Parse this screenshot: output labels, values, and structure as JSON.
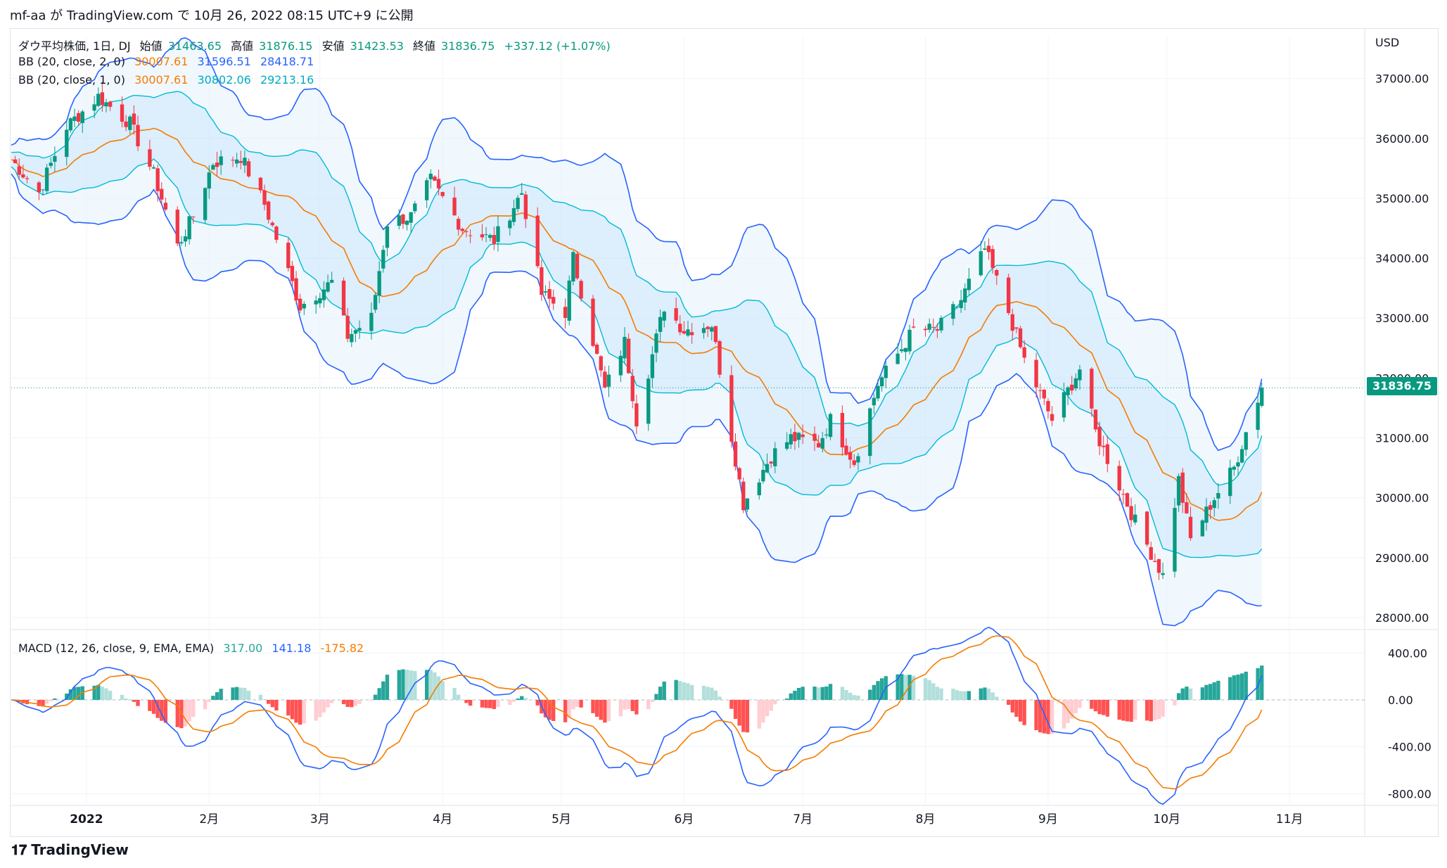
{
  "header": {
    "text": "mf-aa が TradingView.com で 10月 26, 2022 08:15 UTC+9 に公開"
  },
  "legend": {
    "main": {
      "name": "ダウ平均株価, 1日, DJ",
      "open_label": "始値",
      "open": "31463.65",
      "high_label": "高値",
      "high": "31876.15",
      "low_label": "安値",
      "low": "31423.53",
      "close_label": "終値",
      "close": "31836.75",
      "change": "+337.12 (+1.07%)"
    },
    "bb2": {
      "label": "BB (20, close, 2, 0)",
      "basis": "30007.61",
      "upper": "31596.51",
      "lower": "28418.71"
    },
    "bb1": {
      "label": "BB (20, close, 1, 0)",
      "basis": "30007.61",
      "upper": "30802.06",
      "lower": "29213.16"
    },
    "macd": {
      "label": "MACD (12, 26, close, 9, EMA, EMA)",
      "hist": "317.00",
      "macd": "141.18",
      "signal": "-175.82"
    }
  },
  "price_label": "31836.75",
  "footer": {
    "brand": "TradingView"
  },
  "colors": {
    "up": "#089981",
    "down": "#f23645",
    "basis": "#f57c00",
    "bb_outer": "#2962ff",
    "bb_inner": "#00bcd4",
    "macd_line": "#2962ff",
    "signal_line": "#f57c00",
    "hist_up_strong": "#26a69a",
    "hist_up_weak": "#b2dfdb",
    "hist_down_strong": "#ff5252",
    "hist_down_weak": "#ffcdd2"
  },
  "chart_data": {
    "type": "candlestick",
    "currency": "USD",
    "price_axis": {
      "ticks": [
        "37000.00",
        "36000.00",
        "35000.00",
        "34000.00",
        "33000.00",
        "32000.00",
        "31000.00",
        "30000.00",
        "29000.00",
        "28000.00"
      ],
      "ylim": [
        27800,
        37700
      ]
    },
    "macd_axis": {
      "ticks": [
        "400.00",
        "0.00",
        "-400.00",
        "-800.00"
      ],
      "ylim": [
        -900,
        600
      ]
    },
    "time_axis": {
      "labels": [
        "2022",
        "2月",
        "3月",
        "4月",
        "5月",
        "6月",
        "7月",
        "8月",
        "9月",
        "10月",
        "11月"
      ]
    },
    "anchors": [
      {
        "d": "2021-12-13",
        "p": 35650
      },
      {
        "d": "2021-12-20",
        "p": 35100
      },
      {
        "d": "2021-12-27",
        "p": 36200
      },
      {
        "d": "2022-01-04",
        "p": 36700
      },
      {
        "d": "2022-01-12",
        "p": 36250
      },
      {
        "d": "2022-01-18",
        "p": 35400
      },
      {
        "d": "2022-01-24",
        "p": 34200
      },
      {
        "d": "2022-01-28",
        "p": 34700
      },
      {
        "d": "2022-02-02",
        "p": 35600
      },
      {
        "d": "2022-02-09",
        "p": 35700
      },
      {
        "d": "2022-02-15",
        "p": 34900
      },
      {
        "d": "2022-02-24",
        "p": 33200
      },
      {
        "d": "2022-03-04",
        "p": 33600
      },
      {
        "d": "2022-03-08",
        "p": 32700
      },
      {
        "d": "2022-03-14",
        "p": 33000
      },
      {
        "d": "2022-03-18",
        "p": 34600
      },
      {
        "d": "2022-03-24",
        "p": 34700
      },
      {
        "d": "2022-03-29",
        "p": 35300
      },
      {
        "d": "2022-04-06",
        "p": 34500
      },
      {
        "d": "2022-04-14",
        "p": 34300
      },
      {
        "d": "2022-04-21",
        "p": 35100
      },
      {
        "d": "2022-04-26",
        "p": 33400
      },
      {
        "d": "2022-05-02",
        "p": 33100
      },
      {
        "d": "2022-05-04",
        "p": 34000
      },
      {
        "d": "2022-05-12",
        "p": 31800
      },
      {
        "d": "2022-05-17",
        "p": 32600
      },
      {
        "d": "2022-05-20",
        "p": 31300
      },
      {
        "d": "2022-05-27",
        "p": 33200
      },
      {
        "d": "2022-06-01",
        "p": 32800
      },
      {
        "d": "2022-06-08",
        "p": 32900
      },
      {
        "d": "2022-06-16",
        "p": 29900
      },
      {
        "d": "2022-06-23",
        "p": 30700
      },
      {
        "d": "2022-06-28",
        "p": 31000
      },
      {
        "d": "2022-07-05",
        "p": 30900
      },
      {
        "d": "2022-07-08",
        "p": 31300
      },
      {
        "d": "2022-07-14",
        "p": 30600
      },
      {
        "d": "2022-07-20",
        "p": 31900
      },
      {
        "d": "2022-07-29",
        "p": 32800
      },
      {
        "d": "2022-08-04",
        "p": 32800
      },
      {
        "d": "2022-08-10",
        "p": 33300
      },
      {
        "d": "2022-08-16",
        "p": 34150
      },
      {
        "d": "2022-08-22",
        "p": 33100
      },
      {
        "d": "2022-08-26",
        "p": 32300
      },
      {
        "d": "2022-09-02",
        "p": 31300
      },
      {
        "d": "2022-09-09",
        "p": 32150
      },
      {
        "d": "2022-09-13",
        "p": 31100
      },
      {
        "d": "2022-09-23",
        "p": 29600
      },
      {
        "d": "2022-09-30",
        "p": 28700
      },
      {
        "d": "2022-10-04",
        "p": 30300
      },
      {
        "d": "2022-10-07",
        "p": 29300
      },
      {
        "d": "2022-10-13",
        "p": 30000
      },
      {
        "d": "2022-10-18",
        "p": 30500
      },
      {
        "d": "2022-10-21",
        "p": 31100
      },
      {
        "d": "2022-10-25",
        "p": 31836.75
      }
    ]
  }
}
